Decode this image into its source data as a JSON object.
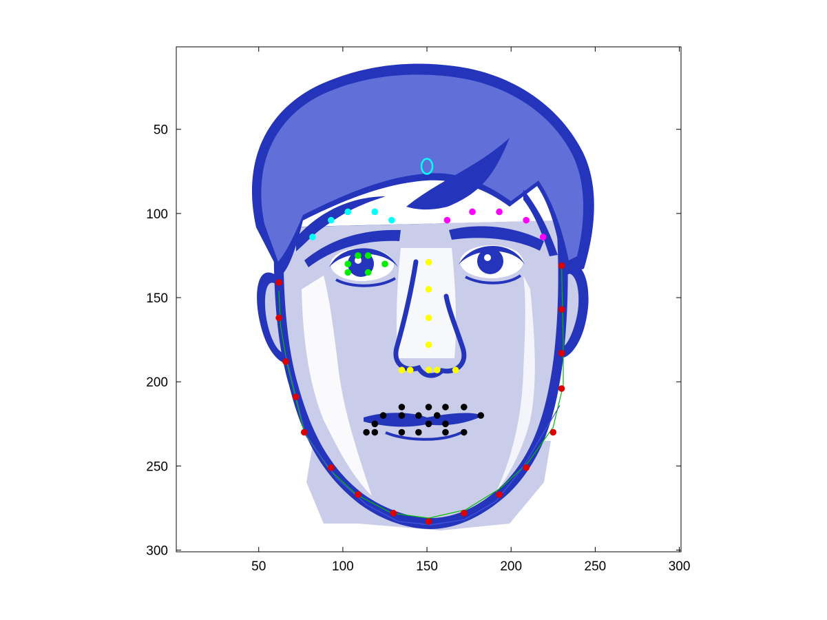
{
  "chart_data": {
    "type": "scatter",
    "title": "",
    "xlabel": "",
    "ylabel": "",
    "xlim": [
      1,
      301
    ],
    "ylim": [
      1,
      301
    ],
    "y_axis_reversed": true,
    "grid": false,
    "xticks": [
      50,
      100,
      150,
      200,
      250,
      300
    ],
    "yticks": [
      50,
      100,
      150,
      200,
      250,
      300
    ],
    "background_image": "face-illustration",
    "series": [
      {
        "color": "#00ffff",
        "marker": "dot",
        "x": [
          82,
          93,
          103,
          119,
          129
        ],
        "y": [
          114,
          104,
          99,
          99,
          104
        ]
      },
      {
        "color": "#ff00ff",
        "marker": "dot",
        "x": [
          162,
          177,
          193,
          209,
          219
        ],
        "y": [
          104,
          99,
          99,
          104,
          114
        ]
      },
      {
        "color": "#00ee00",
        "marker": "dot",
        "x": [
          103,
          109,
          115,
          125,
          103,
          115
        ],
        "y": [
          130,
          125,
          125,
          130,
          135,
          135
        ]
      },
      {
        "color": "#ffff00",
        "marker": "dot",
        "x": [
          151,
          151,
          151,
          151,
          135,
          140,
          151,
          156,
          167
        ],
        "y": [
          129,
          145,
          162,
          178,
          193,
          193,
          193,
          193,
          193
        ]
      },
      {
        "color": "#000000",
        "marker": "dot",
        "x": [
          135,
          151,
          161,
          172,
          124,
          135,
          145,
          156,
          182,
          119,
          151,
          161,
          114,
          119,
          135,
          145,
          161,
          172
        ],
        "y": [
          215,
          215,
          215,
          215,
          220,
          220,
          220,
          220,
          220,
          225,
          225,
          225,
          230,
          230,
          230,
          230,
          230,
          230
        ]
      },
      {
        "color": "#dd0000",
        "marker": "dot",
        "x": [
          62,
          62,
          66,
          72,
          77,
          93,
          109,
          130,
          151,
          172,
          193,
          209,
          225,
          230,
          230,
          230,
          230
        ],
        "y": [
          141,
          162,
          188,
          209,
          230,
          251,
          267,
          278,
          283,
          278,
          267,
          251,
          230,
          204,
          183,
          157,
          131
        ]
      },
      {
        "color": "#00ffff",
        "marker": "ellipse",
        "x": [
          150
        ],
        "y": [
          72
        ]
      }
    ],
    "curves": [
      {
        "color": "#00bb00",
        "x": [
          62,
          63,
          67,
          72,
          77,
          92,
          108,
          129,
          151,
          173,
          194,
          210,
          225,
          231,
          231,
          230
        ],
        "y": [
          146,
          167,
          190,
          210,
          230,
          252,
          267,
          278,
          281,
          276,
          263,
          248,
          227,
          202,
          176,
          131
        ]
      },
      {
        "color": "#4455dd",
        "x": [
          66,
          72,
          78,
          96,
          114,
          133,
          152,
          172,
          191,
          207,
          229
        ],
        "y": [
          184,
          208,
          232,
          257,
          273,
          283,
          285,
          282,
          271,
          251,
          214
        ]
      }
    ]
  }
}
